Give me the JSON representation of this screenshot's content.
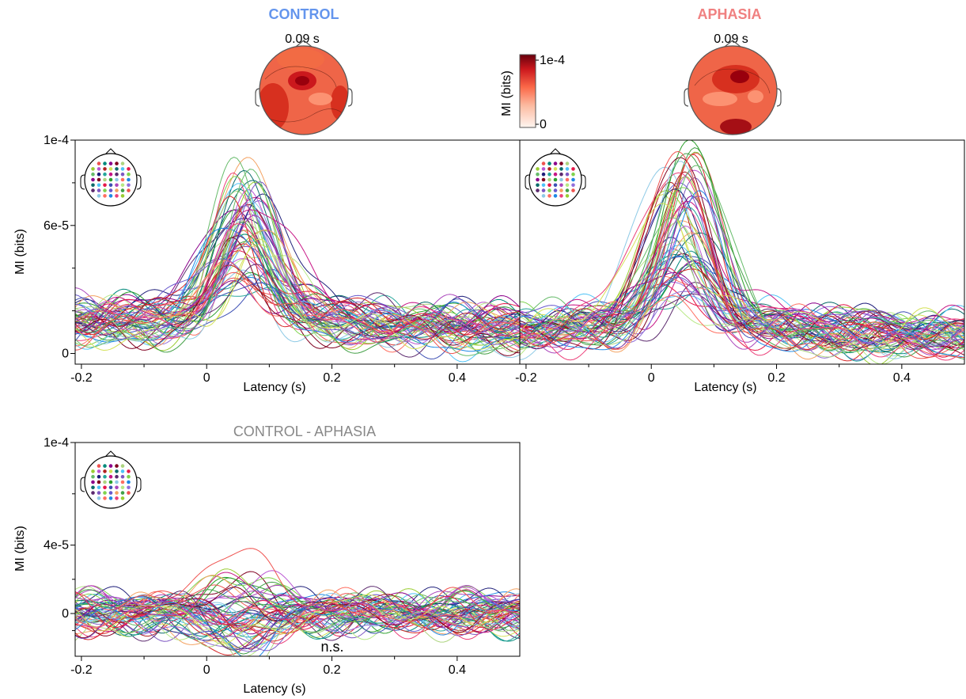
{
  "groups": {
    "control": {
      "label": "CONTROL",
      "color": "#6495ed"
    },
    "aphasia": {
      "label": "APHASIA",
      "color": "#f08080"
    }
  },
  "topomaps": {
    "control": {
      "time_label": "0.09 s"
    },
    "aphasia": {
      "time_label": "0.09 s"
    }
  },
  "colorbar": {
    "label": "MI (bits)",
    "ticks": [
      "1e-4",
      "0"
    ],
    "colors": [
      "#fff5f0",
      "#fcbba1",
      "#fb6a4a",
      "#cb181d",
      "#67000d"
    ]
  },
  "channel_count": 64,
  "chart_data": [
    {
      "type": "line",
      "id": "control",
      "title": "",
      "xlabel": "Latency (s)",
      "ylabel": "MI (bits)",
      "xlim": [
        -0.21,
        0.5
      ],
      "ylim": [
        -5e-06,
        0.0001
      ],
      "x_ticks": [
        "-0.2",
        "0",
        "0.2",
        "0.4"
      ],
      "y_ticks": [
        "1e-4",
        "6e-5",
        "0"
      ],
      "grid": false,
      "legend": "sensor-layout inset top-left",
      "series_summary": {
        "baseline": 1.5e-05,
        "peak_latency_s": 0.06,
        "peak_max": 8.8e-05,
        "peak_min": 3.3e-05
      }
    },
    {
      "type": "line",
      "id": "aphasia",
      "title": "",
      "xlabel": "Latency (s)",
      "ylabel": "",
      "xlim": [
        -0.21,
        0.5
      ],
      "ylim": [
        -5e-06,
        0.0001
      ],
      "x_ticks": [
        "-0.2",
        "0",
        "0.2",
        "0.4"
      ],
      "y_ticks": [],
      "grid": false,
      "legend": "sensor-layout inset top-left",
      "series_summary": {
        "baseline": 1.2e-05,
        "peak_latency_s": 0.05,
        "peak_max": 9.5e-05,
        "peak_min": 2.7e-05
      }
    },
    {
      "type": "line",
      "id": "difference",
      "title": "CONTROL - APHASIA",
      "xlabel": "Latency (s)",
      "ylabel": "MI (bits)",
      "xlim": [
        -0.21,
        0.5
      ],
      "ylim": [
        -2.5e-05,
        0.0001
      ],
      "x_ticks": [
        "-0.2",
        "0",
        "0.2",
        "0.4"
      ],
      "y_ticks": [
        "1e-4",
        "4e-5",
        "0"
      ],
      "grid": false,
      "legend": "sensor-layout inset top-left",
      "annotation": "n.s.",
      "series_summary": {
        "baseline": 0,
        "peak_latency_s": 0.04,
        "peak_max": 4.7e-05,
        "peak_min": -2.2e-05
      }
    }
  ]
}
